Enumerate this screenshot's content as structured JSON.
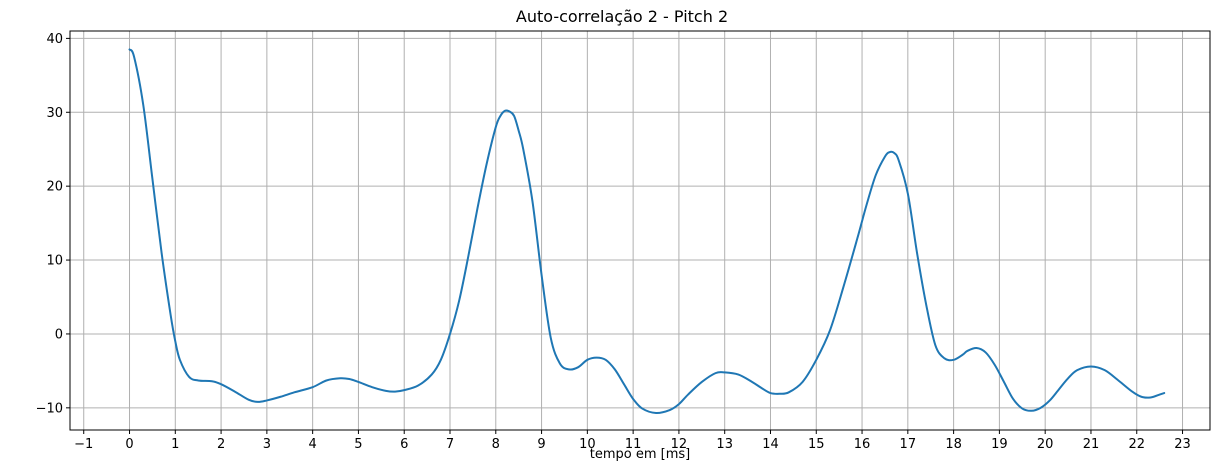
{
  "chart_data": {
    "type": "line",
    "title": "Auto-correlação 2 - Pitch 2",
    "xlabel": "tempo em [ms]",
    "ylabel": "",
    "xlim": [
      -1.3,
      23.6
    ],
    "ylim": [
      -13,
      41
    ],
    "xticks": [
      -1,
      0,
      1,
      2,
      3,
      4,
      5,
      6,
      7,
      8,
      9,
      10,
      11,
      12,
      13,
      14,
      15,
      16,
      17,
      18,
      19,
      20,
      21,
      22,
      23
    ],
    "yticks": [
      -10,
      0,
      10,
      20,
      30,
      40
    ],
    "grid": true,
    "colors": {
      "series": "#1f77b4",
      "grid": "#b0b0b0"
    },
    "series": [
      {
        "x": [
          0,
          0.1,
          0.3,
          0.5,
          0.7,
          0.9,
          1.0,
          1.1,
          1.3,
          1.5,
          1.8,
          2.0,
          2.3,
          2.6,
          2.8,
          3.0,
          3.3,
          3.6,
          4.0,
          4.3,
          4.6,
          4.8,
          5.0,
          5.3,
          5.6,
          5.8,
          6.0,
          6.3,
          6.6,
          6.8,
          7.0,
          7.2,
          7.4,
          7.6,
          7.8,
          8.0,
          8.1,
          8.2,
          8.3,
          8.4,
          8.5,
          8.6,
          8.8,
          9.0,
          9.2,
          9.4,
          9.6,
          9.8,
          10.0,
          10.2,
          10.4,
          10.6,
          10.8,
          11.0,
          11.2,
          11.5,
          11.8,
          12.0,
          12.2,
          12.5,
          12.8,
          13.0,
          13.3,
          13.6,
          13.8,
          14.0,
          14.2,
          14.4,
          14.7,
          15.0,
          15.3,
          15.6,
          15.9,
          16.1,
          16.3,
          16.5,
          16.6,
          16.7,
          16.8,
          17.0,
          17.2,
          17.4,
          17.6,
          17.8,
          18.0,
          18.2,
          18.3,
          18.5,
          18.7,
          18.9,
          19.1,
          19.3,
          19.5,
          19.7,
          19.9,
          20.1,
          20.3,
          20.5,
          20.7,
          21.0,
          21.3,
          21.6,
          21.9,
          22.1,
          22.3,
          22.5,
          22.6
        ],
        "y": [
          38.5,
          37.5,
          31,
          21,
          11,
          2.5,
          -1,
          -3.5,
          -5.8,
          -6.3,
          -6.4,
          -6.8,
          -7.8,
          -8.9,
          -9.2,
          -9.0,
          -8.5,
          -7.9,
          -7.2,
          -6.3,
          -6.0,
          -6.1,
          -6.5,
          -7.2,
          -7.7,
          -7.8,
          -7.6,
          -7.0,
          -5.5,
          -3.5,
          0,
          4.5,
          10.5,
          17,
          23,
          28,
          29.5,
          30.2,
          30.1,
          29.5,
          27.5,
          25,
          18,
          8,
          -0.5,
          -4,
          -4.8,
          -4.5,
          -3.5,
          -3.2,
          -3.5,
          -4.8,
          -6.8,
          -8.8,
          -10.1,
          -10.7,
          -10.3,
          -9.5,
          -8.2,
          -6.5,
          -5.3,
          -5.2,
          -5.5,
          -6.5,
          -7.3,
          -8.0,
          -8.1,
          -7.9,
          -6.5,
          -3.5,
          0.5,
          6.5,
          13,
          17.5,
          21.5,
          24,
          24.6,
          24.5,
          23.5,
          19,
          11,
          4,
          -1.5,
          -3.3,
          -3.5,
          -2.8,
          -2.3,
          -1.9,
          -2.5,
          -4.2,
          -6.5,
          -8.8,
          -10.1,
          -10.4,
          -10.0,
          -9.0,
          -7.5,
          -6.0,
          -4.9,
          -4.4,
          -4.9,
          -6.3,
          -7.8,
          -8.5,
          -8.6,
          -8.2,
          -8.0
        ]
      }
    ]
  }
}
